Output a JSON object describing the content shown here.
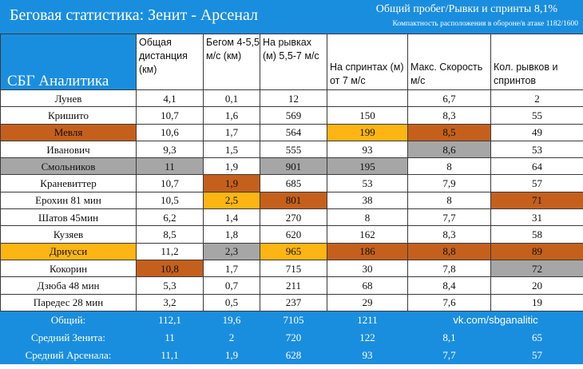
{
  "header": {
    "title": "Беговая статистика: Зенит - Арсенал",
    "summary_line": "Общий пробег/Рывки и спринты 8,1%",
    "compactness_line": "Компактность расположения в обороне/в атаке 1182/1600",
    "brand": "СБГ Аналитика"
  },
  "columns": [
    "Общая дистанция (км)",
    "Бегом 4-5,5 м/с (км)",
    "На рывках (м) 5,5-7 м/с",
    "На спринтах (м) от 7 м/с",
    "Макс. Скорость м/с",
    "Кол. рывков и спринтов"
  ],
  "players": [
    {
      "name": "Лунев",
      "total": "4,1",
      "run": "0,1",
      "dash": "12",
      "sprint": "",
      "max": "6,7",
      "count": "2"
    },
    {
      "name": "Кришито",
      "total": "10,7",
      "run": "1,6",
      "dash": "569",
      "sprint": "150",
      "max": "8,3",
      "count": "55"
    },
    {
      "name": "Мевля",
      "total": "10,6",
      "run": "1,7",
      "dash": "564",
      "sprint": "199",
      "max": "8,5",
      "count": "49"
    },
    {
      "name": "Иванович",
      "total": "9,3",
      "run": "1,5",
      "dash": "555",
      "sprint": "93",
      "max": "8,6",
      "count": "53"
    },
    {
      "name": "Смольников",
      "total": "11",
      "run": "1,9",
      "dash": "901",
      "sprint": "195",
      "max": "8",
      "count": "64"
    },
    {
      "name": "Краневиттер",
      "total": "10,7",
      "run": "1,9",
      "dash": "685",
      "sprint": "53",
      "max": "7,9",
      "count": "57"
    },
    {
      "name": "Ерохин 81 мин",
      "total": "10,5",
      "run": "2,5",
      "dash": "801",
      "sprint": "38",
      "max": "8",
      "count": "71"
    },
    {
      "name": "Шатов 45мин",
      "total": "6,2",
      "run": "1,4",
      "dash": "270",
      "sprint": "8",
      "max": "7,7",
      "count": "31"
    },
    {
      "name": "Кузяев",
      "total": "8,5",
      "run": "1,8",
      "dash": "620",
      "sprint": "162",
      "max": "8,3",
      "count": "58"
    },
    {
      "name": "Дриусси",
      "total": "11,2",
      "run": "2,3",
      "dash": "965",
      "sprint": "186",
      "max": "8,8",
      "count": "89"
    },
    {
      "name": "Кокорин",
      "total": "10,8",
      "run": "1,7",
      "dash": "715",
      "sprint": "30",
      "max": "7,8",
      "count": "72"
    },
    {
      "name": "Дзюба 48 мин",
      "total": "5,3",
      "run": "0,7",
      "dash": "211",
      "sprint": "68",
      "max": "8,4",
      "count": "20"
    },
    {
      "name": "Паредес 28 мин",
      "total": "3,2",
      "run": "0,5",
      "dash": "237",
      "sprint": "29",
      "max": "7,6",
      "count": "19"
    }
  ],
  "highlights": {
    "Мевля": {
      "row": "orange",
      "sprint": "yellow",
      "max": "orange"
    },
    "Иванович": {
      "max": "gray"
    },
    "Смольников": {
      "row": "gray",
      "total": "gray",
      "dash": "gray",
      "sprint": "gray"
    },
    "Краневиттер": {
      "run": "orange"
    },
    "Ерохин 81 мин": {
      "run": "yellow",
      "dash": "orange",
      "count": "orange"
    },
    "Дриусси": {
      "row": "yellow",
      "run": "gray",
      "dash": "yellow",
      "sprint": "orange",
      "max": "orange",
      "count": "orange"
    },
    "Кокорин": {
      "total": "orange",
      "count": "gray"
    }
  },
  "colors": {
    "orange": "#c5601c",
    "yellow": "#fdb513",
    "gray": "#a6a6a6",
    "accent": "#1a8ede"
  },
  "summary": {
    "total": {
      "label": "Общий:",
      "total": "112,1",
      "run": "19,6",
      "dash": "7105",
      "sprint": "1211",
      "link": "vk.com/sbganalitic"
    },
    "zenit": {
      "label": "Средний Зенита:",
      "total": "11",
      "run": "2",
      "dash": "720",
      "sprint": "122",
      "max": "8,1",
      "count": "65"
    },
    "arsenal": {
      "label": "Средний Арсенала:",
      "total": "11,1",
      "run": "1,9",
      "dash": "628",
      "sprint": "93",
      "max": "7,7",
      "count": "57"
    }
  }
}
